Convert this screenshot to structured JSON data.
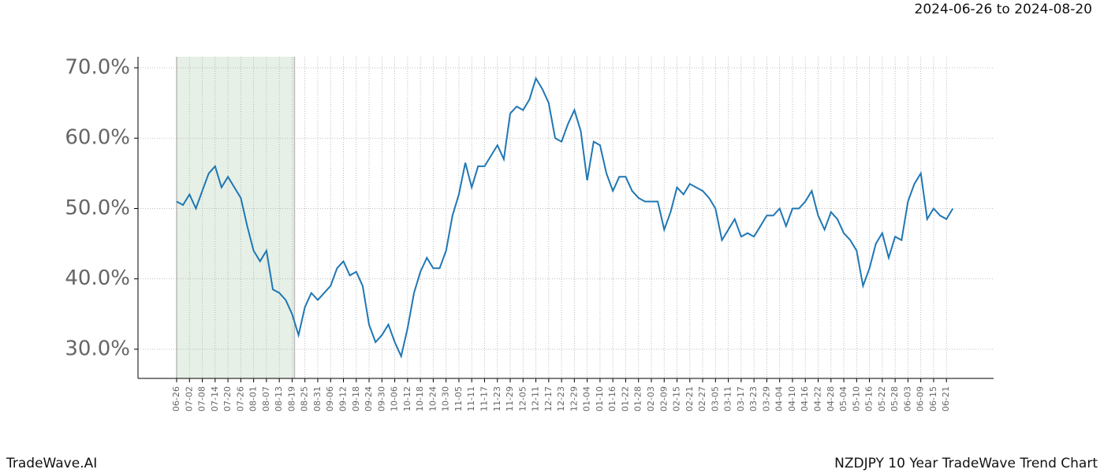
{
  "chart_data": {
    "type": "line",
    "range_label": "2024-06-26 to 2024-08-20",
    "footer_left": "TradeWave.AI",
    "footer_right": "NZDJPY 10 Year TradeWave Trend Chart",
    "categories": [
      "06-26",
      null,
      "07-02",
      null,
      "07-08",
      null,
      "07-14",
      null,
      "07-20",
      null,
      "07-26",
      null,
      "08-01",
      null,
      "08-07",
      null,
      "08-13",
      null,
      "08-19",
      null,
      "08-25",
      null,
      "08-31",
      null,
      "09-06",
      null,
      "09-12",
      null,
      "09-18",
      null,
      "09-24",
      null,
      "09-30",
      null,
      "10-06",
      null,
      "10-12",
      null,
      "10-18",
      null,
      "10-24",
      null,
      "10-30",
      null,
      "11-05",
      null,
      "11-11",
      null,
      "11-17",
      null,
      "11-23",
      null,
      "11-29",
      null,
      "12-05",
      null,
      "12-11",
      null,
      "12-17",
      null,
      "12-23",
      null,
      "12-29",
      null,
      "01-04",
      null,
      "01-10",
      null,
      "01-16",
      null,
      "01-22",
      null,
      "01-28",
      null,
      "02-03",
      null,
      "02-09",
      null,
      "02-15",
      null,
      "02-21",
      null,
      "02-27",
      null,
      "03-05",
      null,
      "03-11",
      null,
      "03-17",
      null,
      "03-23",
      null,
      "03-29",
      null,
      "04-04",
      null,
      "04-10",
      null,
      "04-16",
      null,
      "04-22",
      null,
      "04-28",
      null,
      "05-04",
      null,
      "05-10",
      null,
      "05-16",
      null,
      "05-22",
      null,
      "05-28",
      null,
      "06-03",
      null,
      "06-09",
      null,
      "06-15",
      null,
      "06-21",
      null
    ],
    "series": [
      {
        "name": "NZDJPY",
        "color": "#1f77b4",
        "values": [
          51,
          50.5,
          52,
          50,
          52.5,
          55,
          56,
          53,
          54.5,
          53,
          51.5,
          47.5,
          44,
          42.5,
          44,
          38.5,
          38,
          37,
          35,
          32,
          36,
          38,
          37,
          38,
          39,
          41.5,
          42.5,
          40.5,
          41,
          39,
          33.5,
          31,
          32,
          33.5,
          31,
          29,
          33,
          38,
          41,
          43,
          41.5,
          41.5,
          44,
          49,
          52,
          56.5,
          53,
          56,
          56,
          57.5,
          59,
          57,
          63.5,
          64.5,
          64,
          65.5,
          68.5,
          67,
          65,
          60,
          59.5,
          62,
          64,
          61,
          54,
          59.5,
          59,
          55,
          52.5,
          54.5,
          54.5,
          52.5,
          51.5,
          51,
          51,
          51,
          47,
          49.5,
          53,
          52,
          53.5,
          53,
          52.5,
          51.5,
          50,
          45.5,
          47,
          48.5,
          46,
          46.5,
          46,
          47.5,
          49,
          49,
          50,
          47.5,
          50,
          50,
          51,
          52.5,
          49,
          47,
          49.5,
          48.5,
          46.5,
          45.5,
          44,
          39,
          41.5,
          45,
          46.5,
          43,
          46,
          45.5,
          51,
          53.5,
          55,
          48.5,
          50,
          49,
          48.5,
          50
        ]
      }
    ],
    "highlight": {
      "from": "06-26",
      "to": "08-19",
      "color": "#e6f0e6"
    },
    "ylim": [
      25.85,
      71.57
    ],
    "yticks": [
      {
        "value": 30,
        "label": "30.0%"
      },
      {
        "value": 40,
        "label": "40.0%"
      },
      {
        "value": 50,
        "label": "50.0%"
      },
      {
        "value": 60,
        "label": "60.0%"
      },
      {
        "value": 70,
        "label": "70.0%"
      }
    ],
    "grid": true
  }
}
